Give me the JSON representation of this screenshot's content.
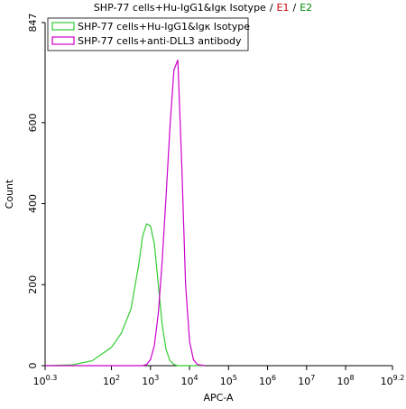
{
  "chart_data": {
    "type": "line",
    "title": "SHP-77 cells+Hu-IgG1&Igκ Isotype",
    "title_separator": "/",
    "gates": [
      {
        "name": "E1",
        "color": "#cc0000"
      },
      {
        "name": "E2",
        "color": "#008800"
      }
    ],
    "x_label": "APC-A",
    "y_label": "Count",
    "x_scale": "log",
    "legend": "upper left",
    "x": [
      2,
      10,
      32,
      100,
      178,
      316,
      501,
      631,
      794,
      1000,
      1259,
      1585,
      1995,
      2512,
      3162,
      3981,
      5012,
      6310,
      7943,
      10000,
      12589,
      15849,
      25119
    ],
    "series": [
      {
        "name": "SHP-77 cells+Hu-IgG1&Igκ Isotype",
        "color": "#33cc33",
        "values": [
          0,
          2,
          12,
          45,
          80,
          140,
          250,
          320,
          350,
          345,
          300,
          200,
          100,
          40,
          12,
          3,
          0,
          0,
          0,
          0,
          0,
          0,
          0
        ]
      },
      {
        "name": "SHP-77 cells+anti-DLL3 antibody",
        "color": "#cc00cc",
        "values": [
          0,
          0,
          0,
          0,
          0,
          0,
          0,
          0,
          3,
          15,
          50,
          130,
          260,
          420,
          590,
          730,
          755,
          500,
          200,
          60,
          15,
          3,
          0
        ]
      }
    ],
    "xlim": [
      1.995,
      1584893192
    ],
    "xticks": [
      {
        "value": 1.995,
        "label": "10",
        "exponent": "0.3"
      },
      {
        "value": 100,
        "label": "10",
        "exponent": "2"
      },
      {
        "value": 1000,
        "label": "10",
        "exponent": "3"
      },
      {
        "value": 10000,
        "label": "10",
        "exponent": "4"
      },
      {
        "value": 100000,
        "label": "10",
        "exponent": "5"
      },
      {
        "value": 1000000,
        "label": "10",
        "exponent": "6"
      },
      {
        "value": 10000000,
        "label": "10",
        "exponent": "7"
      },
      {
        "value": 100000000,
        "label": "10",
        "exponent": "8"
      },
      {
        "value": 1584893192,
        "label": "10",
        "exponent": "9.2"
      }
    ],
    "ylim": [
      0,
      847
    ],
    "yticks": [
      0,
      200,
      400,
      600,
      847
    ]
  }
}
